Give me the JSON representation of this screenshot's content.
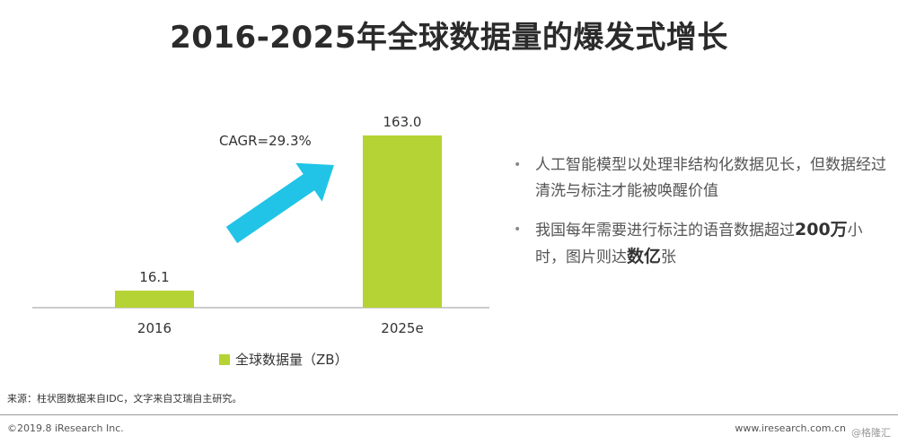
{
  "title": "2016-2025年全球数据量的爆发式增长",
  "colors": {
    "bar": "#b5d334",
    "arrow": "#21c4e6",
    "axis": "#999999"
  },
  "chart_data": {
    "type": "bar",
    "categories": [
      "2016",
      "2025e"
    ],
    "values": [
      16.1,
      163.0
    ],
    "value_labels": [
      "16.1",
      "163.0"
    ],
    "series": [
      {
        "name": "全球数据量（ZB）",
        "values": [
          16.1,
          163.0
        ]
      }
    ],
    "annotation": "CAGR=29.3%",
    "legend_position": "bottom",
    "grid": false
  },
  "legend": {
    "label": "全球数据量（ZB）"
  },
  "bullets": [
    {
      "parts": [
        "人工智能模型以处理非结构化数据见长，但数据经过清洗与标注才能被唤醒价值"
      ]
    },
    {
      "parts": [
        "我国每年需要进行标注的语音数据超过",
        "200万",
        "小时，图片则达",
        "数亿",
        "张"
      ]
    }
  ],
  "source": "来源：柱状图数据来自IDC，文字来自艾瑞自主研究。",
  "copyright": "©2019.8 iResearch Inc.",
  "website": "www.iresearch.com.cn",
  "watermark": "@格隆汇"
}
